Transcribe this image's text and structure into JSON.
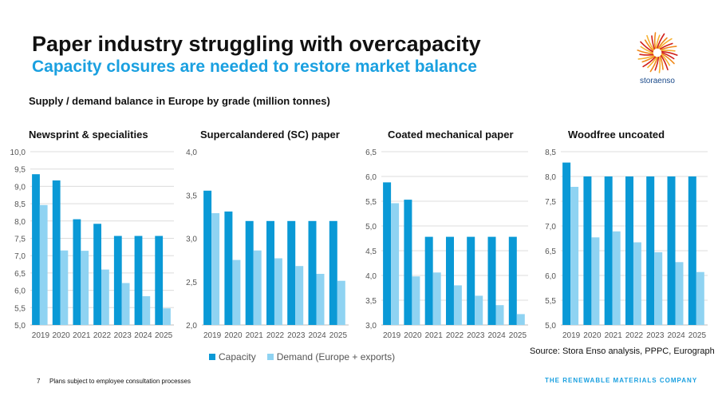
{
  "header": {
    "title": "Paper industry struggling with overcapacity",
    "subtitle": "Capacity closures are needed to restore market balance"
  },
  "logo": {
    "text": "storaenso"
  },
  "section_title": "Supply / demand balance in Europe by grade (million tonnes)",
  "legend": {
    "capacity": "Capacity",
    "demand": "Demand (Europe + exports)"
  },
  "colors": {
    "capacity": "#0a99d6",
    "demand": "#8fd3f2",
    "accent": "#1aa0e0"
  },
  "source": "Source: Stora Enso analysis, PPPC, Eurograph",
  "footer": {
    "page_number": "7",
    "note": "Plans subject to employee consultation processes",
    "tagline": "THE RENEWABLE MATERIALS COMPANY"
  },
  "chart_data": [
    {
      "type": "bar",
      "title": "Newsprint & specialities",
      "categories": [
        "2019",
        "2020",
        "2021",
        "2022",
        "2023",
        "2024",
        "2025"
      ],
      "ylim": [
        5.0,
        10.0
      ],
      "yticks": [
        "5,0",
        "5,5",
        "6,0",
        "6,5",
        "7,0",
        "7,5",
        "8,0",
        "8,5",
        "9,0",
        "9,5",
        "10,0"
      ],
      "grid": true,
      "series": [
        {
          "name": "Capacity",
          "values": [
            9.35,
            9.17,
            8.05,
            7.92,
            7.57,
            7.57,
            7.57
          ]
        },
        {
          "name": "Demand (Europe + exports)",
          "values": [
            8.46,
            7.15,
            7.14,
            6.6,
            6.21,
            5.83,
            5.48
          ]
        }
      ]
    },
    {
      "type": "bar",
      "title": "Supercalandered (SC) paper",
      "categories": [
        "2019",
        "2020",
        "2021",
        "2022",
        "2023",
        "2024",
        "2025"
      ],
      "ylim": [
        2.0,
        4.0
      ],
      "yticks": [
        "2,0",
        "2,5",
        "3,0",
        "3,5",
        "4,0"
      ],
      "grid": false,
      "series": [
        {
          "name": "Capacity",
          "values": [
            3.55,
            3.31,
            3.2,
            3.2,
            3.2,
            3.2,
            3.2
          ]
        },
        {
          "name": "Demand (Europe + exports)",
          "values": [
            3.29,
            2.75,
            2.86,
            2.77,
            2.68,
            2.59,
            2.51
          ]
        }
      ]
    },
    {
      "type": "bar",
      "title": "Coated mechanical paper",
      "categories": [
        "2019",
        "2020",
        "2021",
        "2022",
        "2023",
        "2024",
        "2025"
      ],
      "ylim": [
        3.0,
        6.5
      ],
      "yticks": [
        "3,0",
        "3,5",
        "4,0",
        "4,5",
        "5,0",
        "5,5",
        "6,0",
        "6,5"
      ],
      "grid": true,
      "series": [
        {
          "name": "Capacity",
          "values": [
            5.88,
            5.53,
            4.78,
            4.78,
            4.78,
            4.78,
            4.78
          ]
        },
        {
          "name": "Demand (Europe + exports)",
          "values": [
            5.46,
            3.98,
            4.06,
            3.8,
            3.59,
            3.4,
            3.22
          ]
        }
      ]
    },
    {
      "type": "bar",
      "title": "Woodfree uncoated",
      "categories": [
        "2019",
        "2020",
        "2021",
        "2022",
        "2023",
        "2024",
        "2025"
      ],
      "ylim": [
        5.0,
        8.5
      ],
      "yticks": [
        "5,0",
        "5,5",
        "6,0",
        "6,5",
        "7,0",
        "7,5",
        "8,0",
        "8,5"
      ],
      "grid": true,
      "series": [
        {
          "name": "Capacity",
          "values": [
            8.28,
            8.0,
            8.0,
            8.0,
            8.0,
            8.0,
            8.0
          ]
        },
        {
          "name": "Demand (Europe + exports)",
          "values": [
            7.79,
            6.77,
            6.89,
            6.67,
            6.47,
            6.27,
            6.07
          ]
        }
      ]
    }
  ]
}
